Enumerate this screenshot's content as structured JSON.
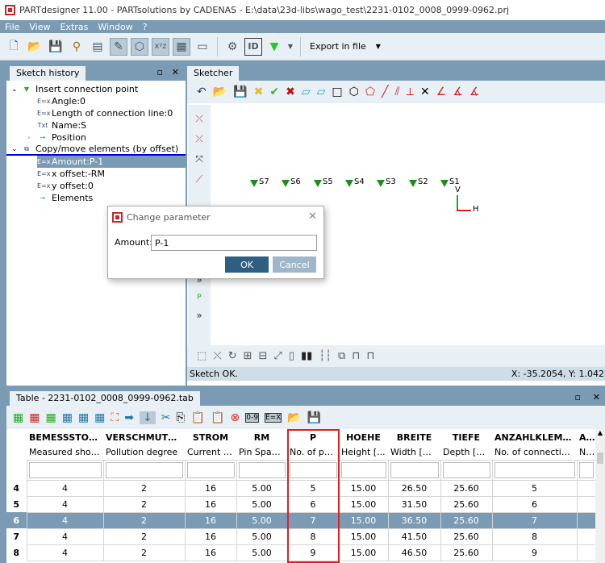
{
  "window": {
    "title": "PARTdesigner 11.00 - PARTsolutions by CADENAS - E:\\data\\23d-libs\\wago_test\\2231-0102_0008_0999-0962.prj"
  },
  "menu": [
    "File",
    "View",
    "Extras",
    "Window",
    "?"
  ],
  "toolbar": {
    "export_label": "Export in file"
  },
  "sketch_history": {
    "title": "Sketch history",
    "items": [
      {
        "label": "Insert connection point",
        "level": 0,
        "expanded": true,
        "icon": "connection-point-icon"
      },
      {
        "label": "Angle:0",
        "level": 1,
        "icon": "expression-icon"
      },
      {
        "label": "Length of connection line:0",
        "level": 1,
        "icon": "expression-icon"
      },
      {
        "label": "Name:S",
        "level": 1,
        "icon": "text-icon"
      },
      {
        "label": "Position",
        "level": 1,
        "collapsed": true,
        "icon": "position-icon"
      },
      {
        "label": "Copy/move elements (by offset)",
        "level": 0,
        "expanded": true,
        "icon": "copy-move-icon"
      },
      {
        "label": "Amount:P-1",
        "level": 1,
        "selected": true,
        "icon": "expression-icon"
      },
      {
        "label": "x offset:-RM",
        "level": 1,
        "icon": "expression-icon"
      },
      {
        "label": "y offset:0",
        "level": 1,
        "icon": "expression-icon"
      },
      {
        "label": "Elements",
        "level": 1,
        "icon": "elements-icon"
      }
    ]
  },
  "sketcher": {
    "title": "Sketcher",
    "points": [
      "S7",
      "S6",
      "S5",
      "S4",
      "S3",
      "S2",
      "S1"
    ],
    "axis_v": "V",
    "axis_h": "H",
    "status": "Sketch OK.",
    "coords": "X: -35.2054, Y: 1.0425"
  },
  "dialog": {
    "title": "Change parameter",
    "field_label": "Amount:",
    "field_value": "P-1",
    "ok": "OK",
    "cancel": "Cancel"
  },
  "table": {
    "title": "Table - 2231-0102_0008_0999-0962.tab",
    "columns": [
      {
        "name": "BEMESSSTOSSSPG",
        "desc": "Measured shock ..."
      },
      {
        "name": "VERSCHMUTZGRAD",
        "desc": "Pollution degree"
      },
      {
        "name": "STROM",
        "desc": "Current in..."
      },
      {
        "name": "RM",
        "desc": "Pin Spaci..."
      },
      {
        "name": "P",
        "desc": "No. of pol..."
      },
      {
        "name": "HOEHE",
        "desc": "Height [..."
      },
      {
        "name": "BREITE",
        "desc": "Width [m..."
      },
      {
        "name": "TIEFE",
        "desc": "Depth [m..."
      },
      {
        "name": "ANZAHLKLEMMSTEL",
        "desc": "No. of connection ..."
      },
      {
        "name": "ANZ",
        "desc": "No."
      }
    ],
    "rows": [
      {
        "n": "4",
        "cells": [
          "4",
          "2",
          "16",
          "5.00",
          "5",
          "15.00",
          "26.50",
          "25.60",
          "5",
          ""
        ]
      },
      {
        "n": "5",
        "cells": [
          "4",
          "2",
          "16",
          "5.00",
          "6",
          "15.00",
          "31.50",
          "25.60",
          "6",
          ""
        ]
      },
      {
        "n": "6",
        "cells": [
          "4",
          "2",
          "16",
          "5.00",
          "7",
          "15.00",
          "36.50",
          "25.60",
          "7",
          ""
        ],
        "selected": true
      },
      {
        "n": "7",
        "cells": [
          "4",
          "2",
          "16",
          "5.00",
          "8",
          "15.00",
          "41.50",
          "25.60",
          "8",
          ""
        ]
      },
      {
        "n": "8",
        "cells": [
          "4",
          "2",
          "16",
          "5.00",
          "9",
          "15.00",
          "46.50",
          "25.60",
          "9",
          ""
        ]
      }
    ],
    "highlighted_column": "P"
  },
  "colors": {
    "accent": "#7a9bb3",
    "highlight_box": "#e02020",
    "ok_button": "#2f5f80"
  }
}
